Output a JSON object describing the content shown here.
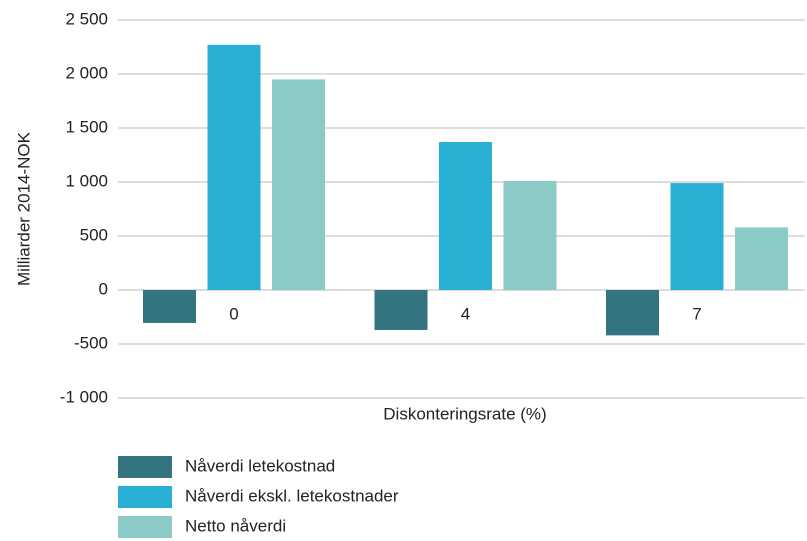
{
  "chart_data": {
    "type": "bar",
    "categories": [
      "0",
      "4",
      "7"
    ],
    "series": [
      {
        "name": "Nåverdi letekostnad",
        "color": "#347480",
        "values": [
          -305,
          -370,
          -420
        ]
      },
      {
        "name": "Nåverdi ekskl. letekostnader",
        "color": "#29afd4",
        "values": [
          2270,
          1370,
          990
        ]
      },
      {
        "name": "Netto nåverdi",
        "color": "#8ccac8",
        "values": [
          1950,
          1010,
          580
        ]
      }
    ],
    "ylabel": "Milliarder 2014-NOK",
    "xlabel": "Diskonteringsrate (%)",
    "ylim": [
      -1000,
      2500
    ],
    "yticks": [
      {
        "value": 2500,
        "label": "2 500"
      },
      {
        "value": 2000,
        "label": "2 000"
      },
      {
        "value": 1500,
        "label": "1 500"
      },
      {
        "value": 1000,
        "label": "1 000"
      },
      500,
      0,
      -500,
      {
        "value": -1000,
        "label": "-1 000"
      }
    ],
    "grid": true,
    "legend": "bottom"
  }
}
